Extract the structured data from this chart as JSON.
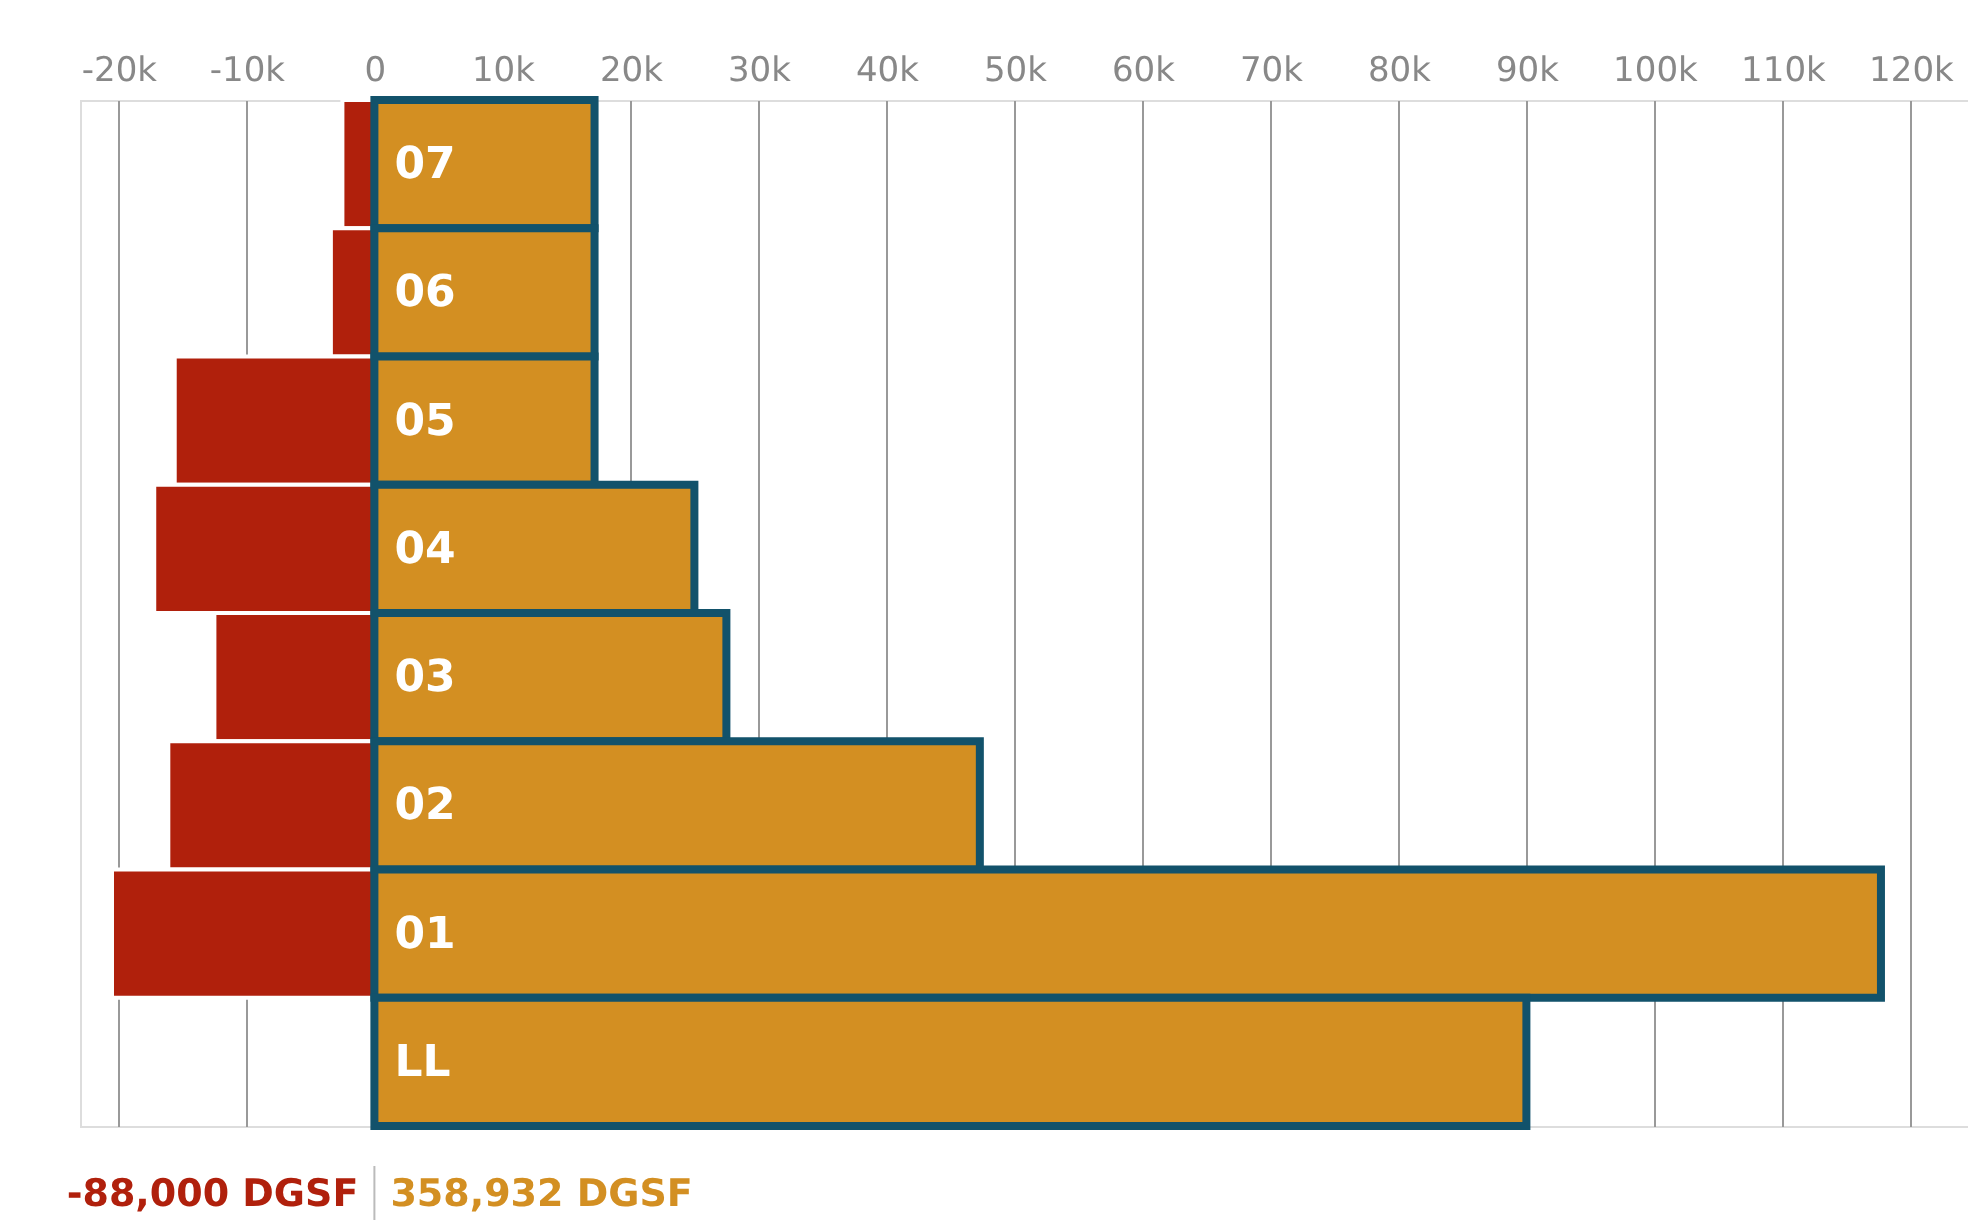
{
  "chart_data": {
    "type": "bar",
    "orientation": "horizontal",
    "stacked": true,
    "categories": [
      "07",
      "06",
      "05",
      "04",
      "03",
      "02",
      "01",
      "LL"
    ],
    "series": [
      {
        "color": "#b0200c",
        "values": [
          -2500,
          -3400,
          -15600,
          -17200,
          -12500,
          -16100,
          -20500,
          null
        ]
      },
      {
        "color": "#d38f22",
        "values": [
          17200,
          17200,
          17200,
          25000,
          27500,
          47300,
          117700,
          90000
        ]
      }
    ],
    "xlim": [
      -23000,
      124500
    ],
    "xticks": [
      {
        "value": -20000,
        "label": "-20k"
      },
      {
        "value": -10000,
        "label": "-10k"
      },
      0,
      {
        "value": 10000,
        "label": "10k"
      },
      {
        "value": 20000,
        "label": "20k"
      },
      {
        "value": 30000,
        "label": "30k"
      },
      {
        "value": 40000,
        "label": "40k"
      },
      {
        "value": 50000,
        "label": "50k"
      },
      {
        "value": 60000,
        "label": "60k"
      },
      {
        "value": 70000,
        "label": "70k"
      },
      {
        "value": 80000,
        "label": "80k"
      },
      {
        "value": 90000,
        "label": "90k"
      },
      {
        "value": 100000,
        "label": "100k"
      },
      {
        "value": 110000,
        "label": "110k"
      },
      {
        "value": 120000,
        "label": "120k"
      }
    ],
    "grid": "x",
    "annotations": [
      "-88,000 DGSF",
      "358,932 DGSF"
    ]
  }
}
